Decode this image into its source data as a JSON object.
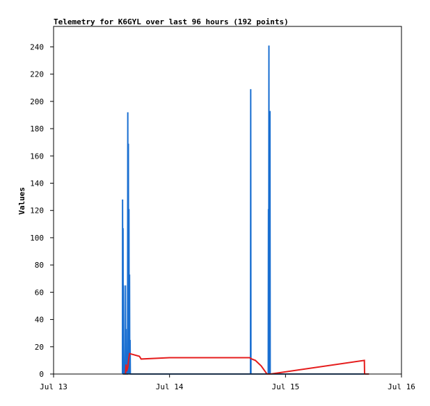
{
  "chart_data": {
    "type": "line",
    "title": "Telemetry for K6GYL over last 96 hours (192 points)",
    "xlabel": "",
    "ylabel": "Values",
    "xlim": [
      "Jul 13",
      "Jul 16"
    ],
    "ylim": [
      0,
      255
    ],
    "x_ticks": [
      "Jul 13",
      "Jul 14",
      "Jul 15",
      "Jul 16"
    ],
    "y_ticks": [
      0,
      20,
      40,
      60,
      80,
      100,
      120,
      140,
      160,
      180,
      200,
      220,
      240
    ],
    "grid": false,
    "legend": "none",
    "x_unit": "days since Jul 13 00:00",
    "series": [
      {
        "color": "#1a6fd1",
        "points": [
          [
            0.594,
            0
          ],
          [
            0.595,
            128
          ],
          [
            0.597,
            0
          ],
          [
            0.599,
            107
          ],
          [
            0.601,
            0
          ],
          [
            0.603,
            65
          ],
          [
            0.605,
            22
          ],
          [
            0.607,
            0
          ],
          [
            0.618,
            0
          ],
          [
            0.62,
            65
          ],
          [
            0.622,
            0
          ],
          [
            0.625,
            33
          ],
          [
            0.627,
            0
          ],
          [
            0.638,
            0
          ],
          [
            0.64,
            192
          ],
          [
            0.642,
            0
          ],
          [
            0.645,
            169
          ],
          [
            0.647,
            0
          ],
          [
            0.65,
            121
          ],
          [
            0.652,
            0
          ],
          [
            0.655,
            73
          ],
          [
            0.657,
            0
          ],
          [
            0.66,
            25
          ],
          [
            0.662,
            0
          ],
          [
            1.698,
            0
          ],
          [
            1.7,
            209
          ],
          [
            1.702,
            0
          ],
          [
            1.851,
            0
          ],
          [
            1.853,
            121
          ],
          [
            1.855,
            0
          ],
          [
            1.857,
            241
          ],
          [
            1.859,
            0
          ],
          [
            1.862,
            193
          ],
          [
            1.864,
            0
          ],
          [
            1.866,
            193
          ],
          [
            1.868,
            0
          ],
          [
            2.72,
            0
          ]
        ]
      },
      {
        "color": "#e51c1c",
        "points": [
          [
            0.62,
            0
          ],
          [
            0.625,
            7
          ],
          [
            0.63,
            2
          ],
          [
            0.64,
            5
          ],
          [
            0.648,
            11
          ],
          [
            0.655,
            15
          ],
          [
            0.74,
            13
          ],
          [
            0.755,
            11
          ],
          [
            1.0,
            12
          ],
          [
            1.44,
            12
          ],
          [
            1.46,
            12
          ],
          [
            1.69,
            12
          ],
          [
            1.71,
            11
          ],
          [
            1.74,
            10
          ],
          [
            1.79,
            6
          ],
          [
            1.84,
            0
          ],
          [
            1.87,
            0
          ],
          [
            2.68,
            10
          ],
          [
            2.682,
            0
          ],
          [
            2.72,
            0
          ]
        ]
      },
      {
        "color": "#1a1a1a",
        "points": [
          [
            0.594,
            0
          ],
          [
            2.72,
            0
          ]
        ]
      }
    ]
  }
}
